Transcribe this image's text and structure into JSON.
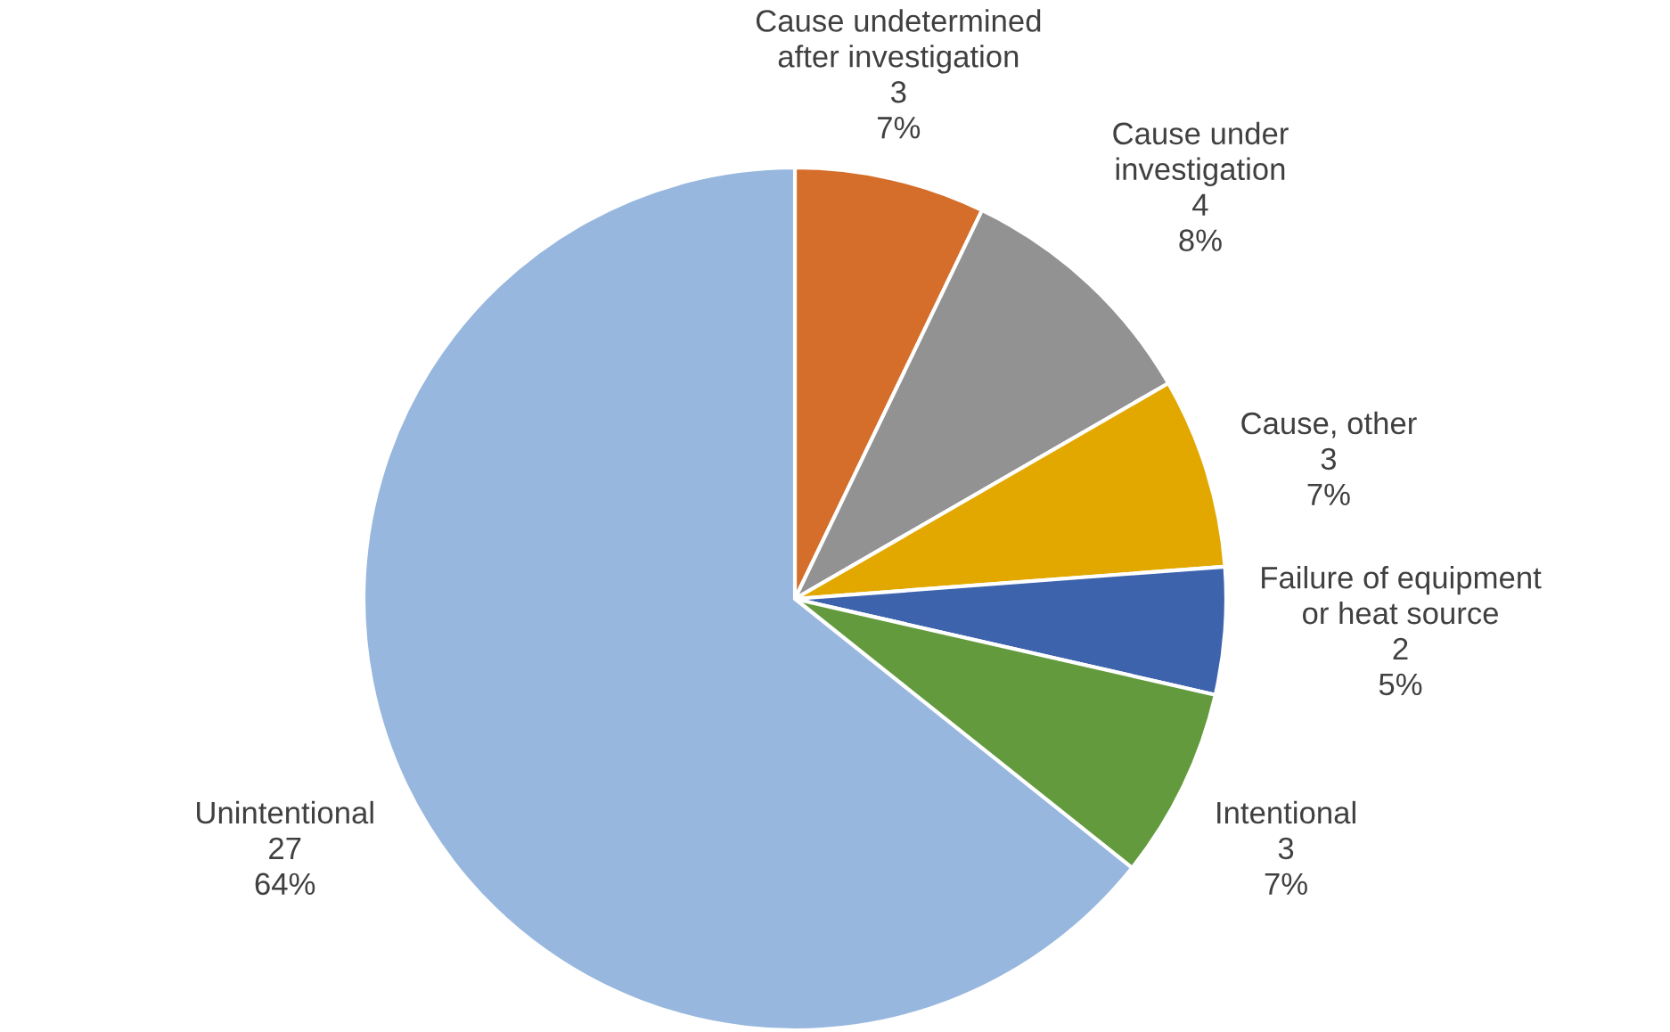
{
  "chart_data": {
    "type": "pie",
    "categories": [
      "Cause undetermined\nafter investigation",
      "Cause under\ninvestigation",
      "Cause, other",
      "Failure of equipment\nor heat source",
      "Intentional",
      "Unintentional"
    ],
    "values": [
      3,
      4,
      3,
      2,
      3,
      27
    ],
    "value_labels": [
      "3\n7%",
      "4\n8%",
      "3\n7%",
      "2\n5%",
      "3\n7%",
      "27\n64%"
    ],
    "colors": [
      "#d46e2a",
      "#929292",
      "#e2a800",
      "#3d63ad",
      "#629a3d",
      "#97b7de"
    ],
    "legend": false
  }
}
